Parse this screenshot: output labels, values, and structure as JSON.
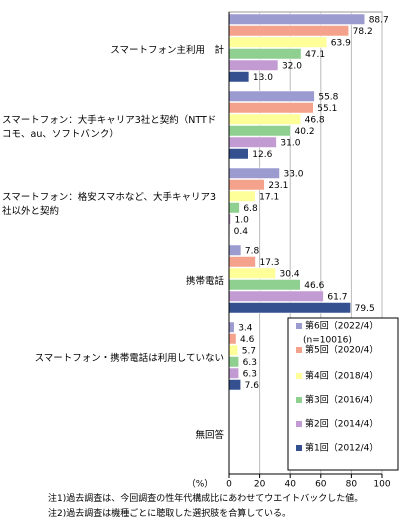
{
  "chart_data": {
    "type": "hbar",
    "categories": [
      "スマートフォン主利用　計",
      "スマートフォン：大手キャリア3社と契約（NTTドコモ、au、ソフトバンク）",
      "スマートフォン：格安スマホなど、大手キャリア3社以外と契約",
      "携帯電話",
      "スマートフォン・携帯電話は利用していない",
      "無回答"
    ],
    "series": [
      {
        "name": "第6回（2022/4）",
        "color": "#9b9bd0",
        "values": [
          88.7,
          55.8,
          33.0,
          7.8,
          3.4,
          null
        ],
        "value_labels": [
          "88.7",
          "55.8",
          "33.0",
          "7.8",
          "3.4",
          null
        ]
      },
      {
        "name": "第5回（2020/4）",
        "color": "#f4a28c",
        "values": [
          78.2,
          55.1,
          23.1,
          17.3,
          4.6,
          null
        ],
        "value_labels": [
          "78.2",
          "55.1",
          "23.1",
          "17.3",
          "4.6",
          null
        ]
      },
      {
        "name": "第4回（2018/4）",
        "color": "#ffff99",
        "values": [
          63.9,
          46.8,
          17.1,
          30.4,
          5.7,
          null
        ],
        "value_labels": [
          "63.9",
          "46.8",
          "17.1",
          "30.4",
          "5.7",
          null
        ]
      },
      {
        "name": "第3回（2016/4）",
        "color": "#8fcf8f",
        "values": [
          47.1,
          40.2,
          6.8,
          46.6,
          6.3,
          null
        ],
        "value_labels": [
          "47.1",
          "40.2",
          "6.8",
          "46.6",
          "6.3",
          null
        ]
      },
      {
        "name": "第2回（2014/4）",
        "color": "#c39bd3",
        "values": [
          32.0,
          31.0,
          1.0,
          61.7,
          6.3,
          null
        ],
        "value_labels": [
          "32.0",
          "31.0",
          "1.0",
          "61.7",
          "6.3",
          null
        ]
      },
      {
        "name": "第1回（2012/4）",
        "color": "#34508f",
        "values": [
          13.0,
          12.6,
          0.4,
          79.5,
          7.6,
          null
        ],
        "value_labels": [
          "13.0",
          "12.6",
          "0.4",
          "79.5",
          "7.6",
          null
        ]
      }
    ],
    "legend_note": "(n=10016)",
    "x_label": "（%）",
    "xlim": [
      0,
      100
    ],
    "xticks": [
      0,
      20,
      40,
      60,
      80,
      100
    ],
    "grid": true,
    "notes": [
      "注1)過去調査は、今回調査の性年代構成比にあわせてウエイトバックした値。",
      "注2)過去調査は機種ごとに聴取した選択肢を合算している。"
    ]
  }
}
